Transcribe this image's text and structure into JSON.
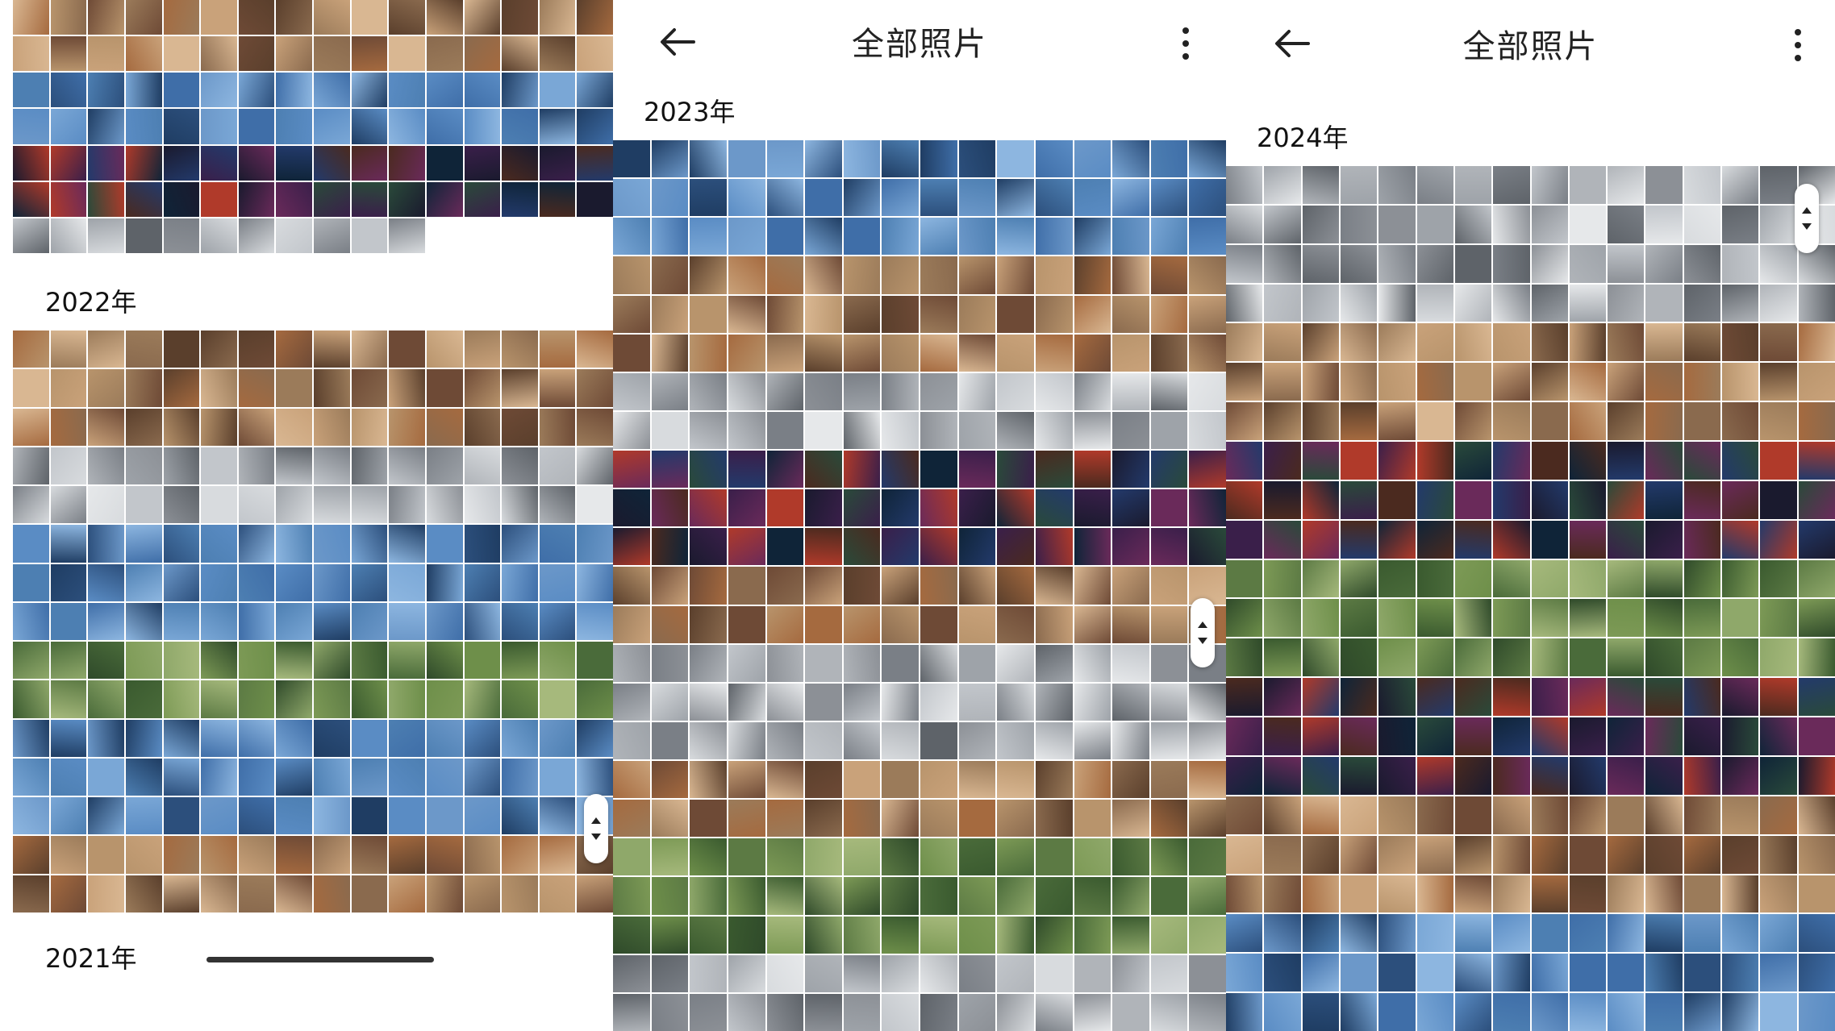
{
  "panels": [
    {
      "id": "left",
      "title": "",
      "sections": [
        {
          "year": "2022年"
        },
        {
          "year": "2021年"
        }
      ]
    },
    {
      "id": "mid",
      "title": "全部照片",
      "sections": [
        {
          "year": "2023年"
        }
      ]
    },
    {
      "id": "right",
      "title": "全部照片",
      "sections": [
        {
          "year": "2024年"
        }
      ]
    }
  ],
  "icons": {
    "back": "back-arrow-icon",
    "more": "more-vert-icon",
    "scroll": "scroll-handle-icon"
  },
  "colors": {
    "background": "#ffffff",
    "text": "#111111",
    "photo_palette_warm": [
      "#8a6a4e",
      "#b8946c",
      "#6e4a36",
      "#c9a27a",
      "#9b7b5a",
      "#d9b792",
      "#5a3f2c",
      "#a56a3f"
    ],
    "photo_palette_cool": [
      "#3f6ea8",
      "#5a8cc4",
      "#2c4f7c",
      "#7aa7d6",
      "#4d7fb2",
      "#1f3d63",
      "#6c98c9",
      "#8db6e0"
    ],
    "photo_palette_gray": [
      "#7a7f86",
      "#9ea3a9",
      "#c2c6cb",
      "#5e6369",
      "#b0b4b9",
      "#d8dbde",
      "#8c9096",
      "#e6e8ea"
    ],
    "photo_palette_night": [
      "#1a1a2e",
      "#3a1f4a",
      "#233a6b",
      "#4b2a1f",
      "#0f2438",
      "#6a2a5a",
      "#2a4a3a",
      "#b03a2a"
    ],
    "photo_palette_green": [
      "#4a6b3a",
      "#6e8f4a",
      "#3a5a2f",
      "#8fa86a",
      "#5c7a44",
      "#a6b97c",
      "#2f4a2a",
      "#7d9a56"
    ]
  }
}
